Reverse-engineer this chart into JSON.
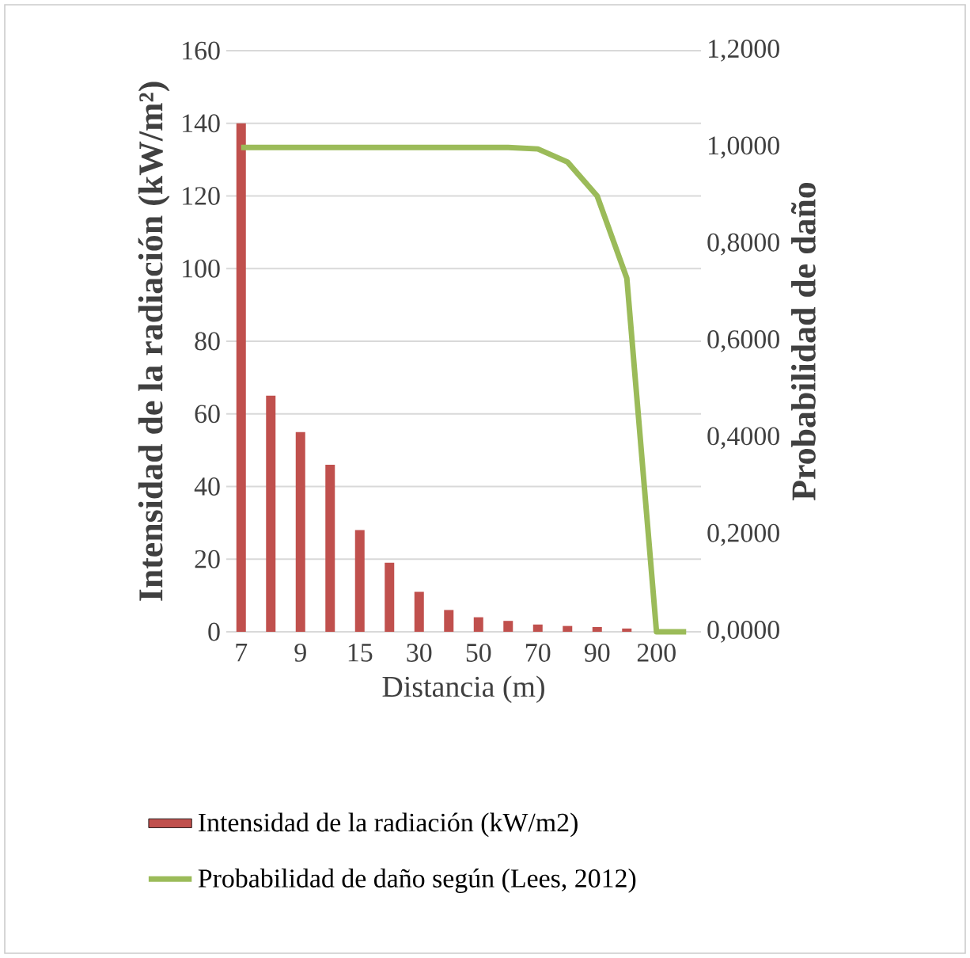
{
  "chart_data": {
    "type": "bar",
    "xlabel": "Distancia (m)",
    "ylabel": "Intensidad de la radiación (kW/m²)",
    "y2label": "Probabilidad de daño",
    "categories": [
      "7",
      null,
      "9",
      null,
      "15",
      null,
      "30",
      null,
      "50",
      null,
      "70",
      null,
      "90",
      null,
      "200",
      null
    ],
    "series": [
      {
        "name": "Intensidad de la radiación (kW/m2)",
        "color": "#c0504d",
        "values": [
          140,
          65,
          55,
          46,
          28,
          19,
          11,
          6,
          4,
          3,
          2,
          1.6,
          1.3,
          0.9,
          0,
          0
        ]
      },
      {
        "name": "Probabilidad de daño según (Lees, 2012)",
        "type": "line",
        "axis": "y2",
        "color": "#9bbb59",
        "values": [
          1.0,
          1.0,
          1.0,
          1.0,
          1.0,
          1.0,
          1.0,
          1.0,
          1.0,
          1.0,
          0.997,
          0.97,
          0.9,
          0.73,
          0,
          0
        ]
      }
    ],
    "ylim": [
      0,
      160
    ],
    "yticks": [
      0,
      20,
      40,
      60,
      80,
      100,
      120,
      140,
      160
    ],
    "y2lim": [
      0,
      1.2
    ],
    "y2ticks": [
      {
        "value": 0,
        "label": "0,0000"
      },
      {
        "value": 0.2,
        "label": "0,2000"
      },
      {
        "value": 0.4,
        "label": "0,4000"
      },
      {
        "value": 0.6,
        "label": "0,6000"
      },
      {
        "value": 0.8,
        "label": "0,8000"
      },
      {
        "value": 1.0,
        "label": "1,0000"
      },
      {
        "value": 1.2,
        "label": "1,2000"
      }
    ],
    "grid": "y",
    "legend": "bottom"
  }
}
